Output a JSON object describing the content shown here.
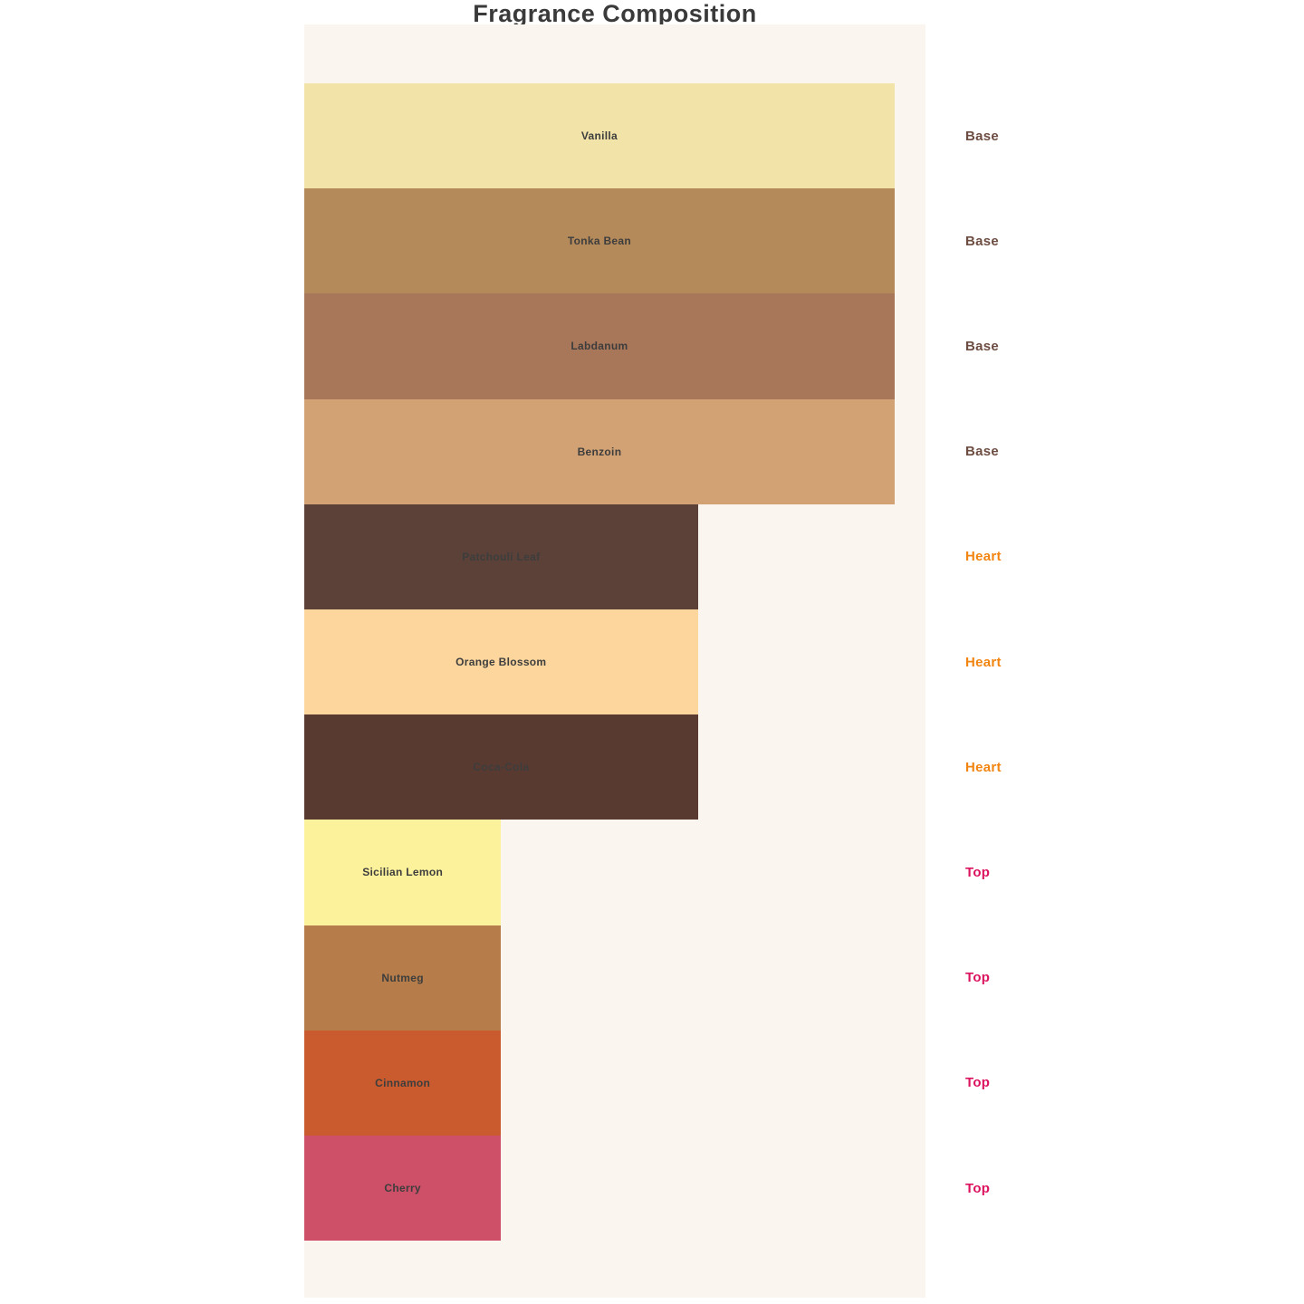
{
  "title": "Fragrance Composition",
  "chart_data": {
    "type": "bar",
    "orientation": "horizontal",
    "title": "Fragrance Composition",
    "categories": [
      "Vanilla",
      "Tonka Bean",
      "Labdanum",
      "Benzoin",
      "Patchouli Leaf",
      "Orange Blossom",
      "Coca-Cola",
      "Sicilian Lemon",
      "Nutmeg",
      "Cinnamon",
      "Cherry"
    ],
    "values": [
      3,
      3,
      3,
      3,
      2,
      2,
      2,
      1,
      1,
      1,
      1
    ],
    "value_note": "relative bar lengths in ratio 3:2:1 for Base:Heart:Top notes",
    "groups": [
      "Base",
      "Base",
      "Base",
      "Base",
      "Heart",
      "Heart",
      "Heart",
      "Top",
      "Top",
      "Top",
      "Top"
    ],
    "group_labels": [
      "Base",
      "Heart",
      "Top"
    ],
    "bar_colors": [
      "#f2e4a8",
      "#b58a5b",
      "#a87659",
      "#d2a274",
      "#5b4138",
      "#fcd69d",
      "#593a30",
      "#fdf29c",
      "#b67d4a",
      "#c95b2e",
      "#cd5068"
    ],
    "group_label_colors": {
      "Base": "#6d4c41",
      "Heart": "#f28511",
      "Top": "#dc1460"
    },
    "xlim": [
      0,
      3.16
    ],
    "grid": false,
    "legend": "none",
    "axis_ticks": "none",
    "plot_background": "#faf5ee",
    "page_background": "#ffffff",
    "bar_label_color": "#3d3d3d",
    "title_color": "#3a3a3a"
  }
}
